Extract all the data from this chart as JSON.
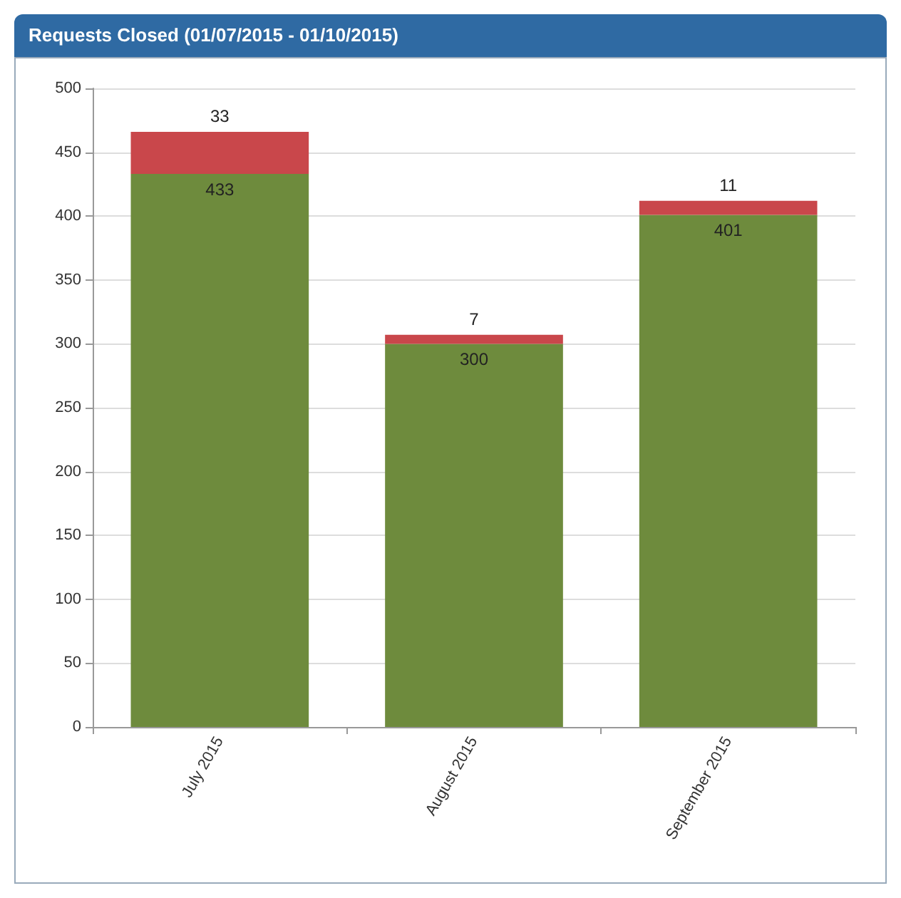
{
  "chart_data": {
    "type": "bar",
    "title": "Requests Closed (01/07/2015 - 01/10/2015)",
    "categories": [
      "July 2015",
      "August 2015",
      "September 2015"
    ],
    "series": [
      {
        "color": "#6e8b3d",
        "values": [
          433,
          300,
          401
        ]
      },
      {
        "color": "#c9474b",
        "values": [
          33,
          7,
          11
        ]
      }
    ],
    "stacked": true,
    "data_labels": true,
    "ylim": [
      0,
      500
    ],
    "yticks": [
      0,
      50,
      100,
      150,
      200,
      250,
      300,
      350,
      400,
      450,
      500
    ],
    "grid": "y"
  }
}
